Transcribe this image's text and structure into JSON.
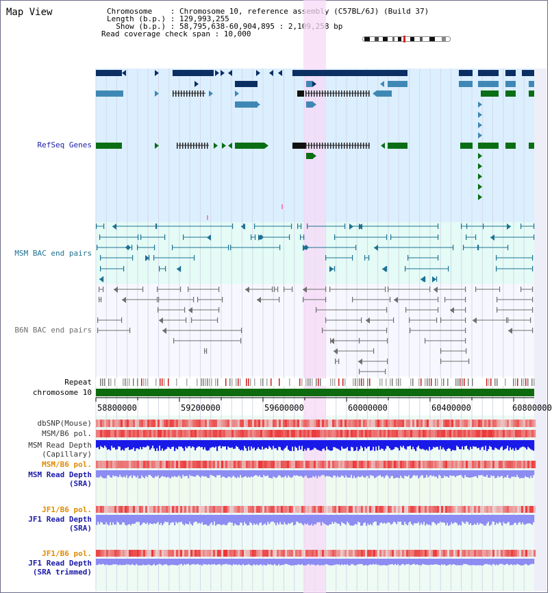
{
  "view": {
    "title": "Map View",
    "chromosome_label": "Chromosome    : Chromosome 10, reference assembly (C57BL/6J) (Build 37)",
    "length_label": "Length (b.p.) : 129,993,255",
    "show_label": "  Show (b.p.) : 58,795,638-60,904,895 : 2,109,258 bp",
    "span_label": "Read coverage check span : 10,000"
  },
  "colors": {
    "refseq_bg": "#dcefff",
    "msm_bg": "#e4fbf6",
    "b6n_bg": "#f7f7ff",
    "highlight": "#f7d9f7",
    "gene_dark": "#0b2e63",
    "gene_mid": "#3f88b5",
    "gene_green": "#0a6e15",
    "msm_pair": "#1d7193",
    "b6n_pair": "#6e6e6e",
    "depth_blue": "#1a1ae8",
    "depth_lavender": "#8c8cf2",
    "pol_red": "#ea3030",
    "chrom_green": "#0e6a0e"
  },
  "tracks": {
    "refseq": "RefSeq Genes",
    "msm_bac": "MSM BAC end pairs",
    "b6n_bac": "B6N BAC end pairs",
    "repeat": "Repeat",
    "chromosome": "chromosome 10",
    "dbsnp": "dbSNP(Mouse)",
    "msm_b6_pol": "MSM/B6 pol.",
    "msm_depth_cap_1": "MSM Read Depth",
    "msm_depth_cap_2": "(Capillary)",
    "msm_b6_pol_sra": "MSM/B6 pol.",
    "msm_depth_sra_1": "MSM Read Depth",
    "msm_depth_sra_2": "(SRA)",
    "jf1_b6_pol": "JF1/B6 pol.",
    "jf1_depth_sra_1": "JF1 Read Depth",
    "jf1_depth_sra_2": "(SRA)",
    "jf1_b6_pol_trim": "JF1/B6 pol.",
    "jf1_depth_trim_1": "JF1 Read Depth",
    "jf1_depth_trim_2": "(SRA trimmed)"
  },
  "axis": {
    "ticks": [
      "58800000",
      "59200000",
      "59600000",
      "60000000",
      "60400000",
      "60800000"
    ]
  }
}
